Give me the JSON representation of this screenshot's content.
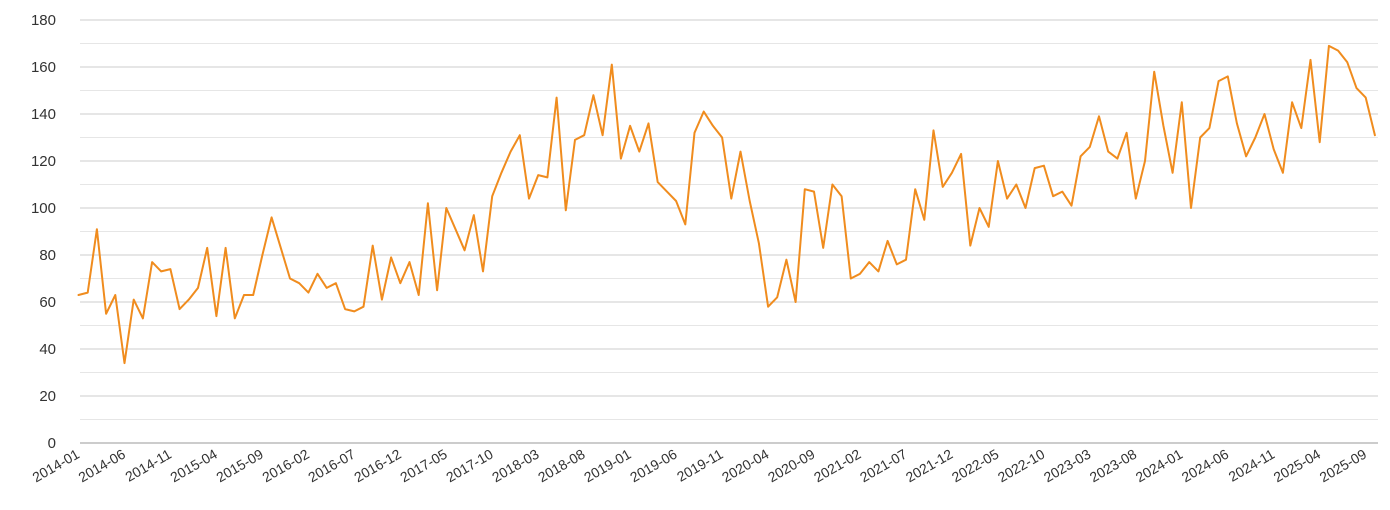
{
  "chart_data": {
    "type": "line",
    "title": "",
    "xlabel": "",
    "ylabel": "",
    "ylim": [
      0,
      180
    ],
    "y_ticks": [
      0,
      20,
      40,
      60,
      80,
      100,
      120,
      140,
      160,
      180
    ],
    "grid": true,
    "legend": "none",
    "x_tick_labels": [
      "2014-01",
      "2014-06",
      "2014-11",
      "2015-04",
      "2015-09",
      "2016-02",
      "2016-07",
      "2016-12",
      "2017-05",
      "2017-10",
      "2018-03",
      "2018-08",
      "2019-01",
      "2019-06",
      "2019-11",
      "2020-04",
      "2020-09",
      "2021-02",
      "2021-07",
      "2021-12",
      "2022-05",
      "2022-10",
      "2023-03",
      "2023-08",
      "2024-01",
      "2024-06",
      "2024-11",
      "2025-04",
      "2025-09"
    ],
    "x_start": "2014-01",
    "series": [
      {
        "color": "#f08c1e",
        "x": [
          "2014-01",
          "2014-02",
          "2014-03",
          "2014-04",
          "2014-05",
          "2014-06",
          "2014-07",
          "2014-08",
          "2014-09",
          "2014-10",
          "2014-11",
          "2014-12",
          "2015-01",
          "2015-02",
          "2015-03",
          "2015-04",
          "2015-05",
          "2015-06",
          "2015-07",
          "2015-08",
          "2015-09",
          "2015-10",
          "2015-11",
          "2015-12",
          "2016-01",
          "2016-02",
          "2016-03",
          "2016-04",
          "2016-05",
          "2016-06",
          "2016-07",
          "2016-08",
          "2016-09",
          "2016-10",
          "2016-11",
          "2016-12",
          "2017-01",
          "2017-02",
          "2017-03",
          "2017-04",
          "2017-05",
          "2017-06",
          "2017-07",
          "2017-08",
          "2017-09",
          "2017-10",
          "2017-11",
          "2017-12",
          "2018-01",
          "2018-02",
          "2018-03",
          "2018-04",
          "2018-05",
          "2018-06",
          "2018-07",
          "2018-08",
          "2018-09",
          "2018-10",
          "2018-11",
          "2018-12",
          "2019-01",
          "2019-02",
          "2019-03",
          "2019-04",
          "2019-05",
          "2019-06",
          "2019-07",
          "2019-08",
          "2019-09",
          "2019-10",
          "2019-11",
          "2019-12",
          "2020-01",
          "2020-02",
          "2020-03",
          "2020-04",
          "2020-05",
          "2020-06",
          "2020-07",
          "2020-08",
          "2020-09",
          "2020-10",
          "2020-11",
          "2020-12",
          "2021-01",
          "2021-02",
          "2021-03",
          "2021-04",
          "2021-05",
          "2021-06",
          "2021-07",
          "2021-08",
          "2021-09",
          "2021-10",
          "2021-11",
          "2021-12",
          "2022-01",
          "2022-02",
          "2022-03",
          "2022-04",
          "2022-05",
          "2022-06",
          "2022-07",
          "2022-08",
          "2022-09",
          "2022-10",
          "2022-11",
          "2022-12",
          "2023-01",
          "2023-02",
          "2023-03",
          "2023-04",
          "2023-05",
          "2023-06",
          "2023-07",
          "2023-08",
          "2023-09",
          "2023-10",
          "2023-11",
          "2023-12",
          "2024-01",
          "2024-02",
          "2024-03",
          "2024-04",
          "2024-05",
          "2024-06",
          "2024-07",
          "2024-08",
          "2024-09",
          "2024-10",
          "2024-11",
          "2024-12",
          "2025-01",
          "2025-02",
          "2025-03",
          "2025-04",
          "2025-05",
          "2025-06",
          "2025-07",
          "2025-08",
          "2025-09",
          "2025-10"
        ],
        "values": [
          63,
          64,
          91,
          55,
          63,
          34,
          61,
          53,
          77,
          73,
          74,
          57,
          61,
          66,
          83,
          54,
          83,
          53,
          63,
          63,
          80,
          96,
          83,
          70,
          68,
          64,
          72,
          66,
          68,
          57,
          56,
          58,
          84,
          61,
          79,
          68,
          77,
          63,
          102,
          65,
          100,
          91,
          82,
          97,
          73,
          105,
          115,
          124,
          131,
          104,
          114,
          113,
          147,
          99,
          129,
          131,
          148,
          131,
          161,
          121,
          135,
          124,
          136,
          111,
          107,
          103,
          93,
          132,
          141,
          135,
          130,
          104,
          124,
          103,
          85,
          58,
          62,
          78,
          60,
          108,
          107,
          83,
          110,
          105,
          70,
          72,
          77,
          73,
          86,
          76,
          78,
          108,
          95,
          133,
          109,
          115,
          123,
          84,
          100,
          92,
          120,
          104,
          110,
          100,
          117,
          118,
          105,
          107,
          101,
          122,
          126,
          139,
          124,
          121,
          132,
          104,
          120,
          158,
          135,
          115,
          145,
          100,
          130,
          134,
          154,
          156,
          136,
          122,
          130,
          140,
          125,
          115,
          145,
          134,
          163,
          128,
          169,
          167,
          162,
          151,
          147,
          131
        ]
      }
    ]
  }
}
